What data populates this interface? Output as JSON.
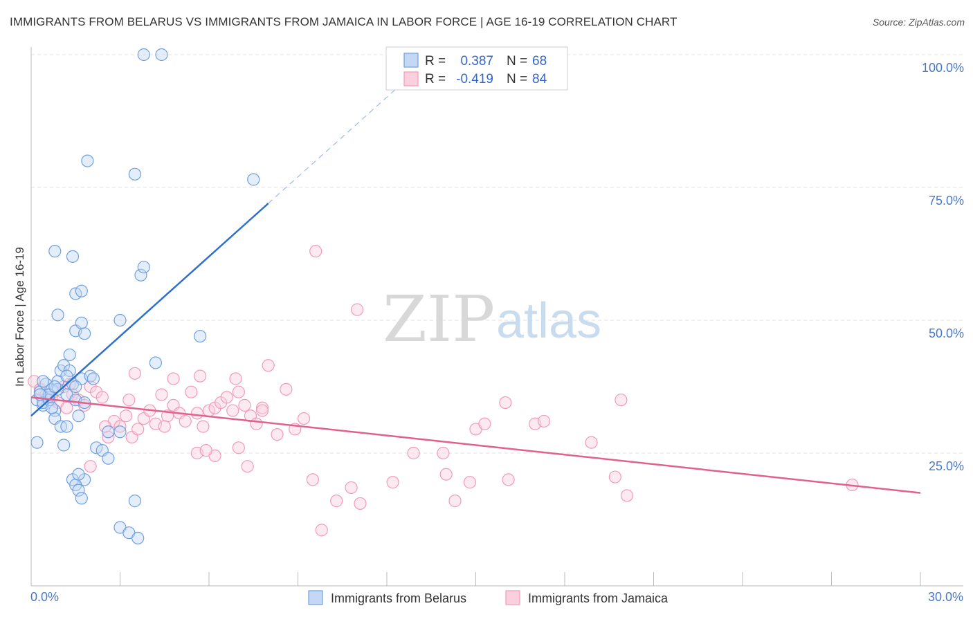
{
  "title": "IMMIGRANTS FROM BELARUS VS IMMIGRANTS FROM JAMAICA IN LABOR FORCE | AGE 16-19 CORRELATION CHART",
  "source": "Source: ZipAtlas.com",
  "watermark": {
    "zip": "ZIP",
    "atlas": "atlas"
  },
  "legend": {
    "r_label": "R =",
    "n_label": "N =",
    "rows": [
      {
        "r": "0.387",
        "n": "68"
      },
      {
        "r": "-0.419",
        "n": "84"
      }
    ]
  },
  "chart_data": {
    "type": "scatter",
    "title": "IMMIGRANTS FROM BELARUS VS IMMIGRANTS FROM JAMAICA IN LABOR FORCE | AGE 16-19 CORRELATION CHART",
    "ylabel": "In Labor Force | Age 16-19",
    "xlabel": "",
    "xlim": [
      0,
      30
    ],
    "ylim": [
      0,
      100
    ],
    "x_tick_labels": [
      "0.0%",
      "30.0%"
    ],
    "y_ticks": [
      25,
      50,
      75,
      100
    ],
    "y_tick_labels": [
      "25.0%",
      "50.0%",
      "75.0%",
      "100.0%"
    ],
    "grid": true,
    "legend_position": "bottom",
    "colors": {
      "belarus": "#6fa0e0",
      "belarus_line": "#2c6fce",
      "jamaica": "#f29ab8",
      "jamaica_line": "#e0608e"
    },
    "series": [
      {
        "name": "Immigrants from Belarus",
        "r": 0.387,
        "n": 68,
        "trend": {
          "x": [
            0,
            8
          ],
          "y": [
            32,
            72
          ]
        },
        "trend_extension": {
          "x": [
            8,
            13
          ],
          "y": [
            72,
            97
          ]
        },
        "points": [
          [
            0.2,
            35.0
          ],
          [
            0.3,
            36.5
          ],
          [
            0.4,
            34.0
          ],
          [
            0.5,
            38.0
          ],
          [
            0.6,
            35.5
          ],
          [
            0.7,
            37.0
          ],
          [
            0.8,
            33.0
          ],
          [
            0.9,
            38.5
          ],
          [
            1.0,
            40.5
          ],
          [
            1.1,
            41.5
          ],
          [
            1.2,
            36.0
          ],
          [
            1.3,
            43.5
          ],
          [
            1.4,
            38.0
          ],
          [
            1.5,
            35.0
          ],
          [
            1.6,
            32.0
          ],
          [
            1.7,
            39.0
          ],
          [
            1.8,
            34.5
          ],
          [
            2.0,
            39.5
          ],
          [
            2.2,
            26.0
          ],
          [
            2.4,
            25.5
          ],
          [
            2.6,
            24.0
          ],
          [
            0.4,
            34.5
          ],
          [
            0.6,
            35.0
          ],
          [
            0.8,
            31.5
          ],
          [
            1.0,
            30.0
          ],
          [
            1.2,
            30.0
          ],
          [
            1.5,
            37.5
          ],
          [
            0.2,
            27.0
          ],
          [
            1.1,
            26.5
          ],
          [
            1.8,
            20.0
          ],
          [
            1.4,
            20.0
          ],
          [
            1.5,
            19.0
          ],
          [
            1.6,
            18.0
          ],
          [
            1.7,
            16.5
          ],
          [
            1.6,
            21.0
          ],
          [
            2.6,
            29.0
          ],
          [
            3.0,
            29.0
          ],
          [
            3.0,
            11.0
          ],
          [
            3.3,
            10.0
          ],
          [
            3.6,
            9.0
          ],
          [
            3.5,
            16.0
          ],
          [
            0.8,
            63.0
          ],
          [
            1.4,
            62.0
          ],
          [
            1.5,
            55.0
          ],
          [
            1.7,
            55.5
          ],
          [
            0.9,
            51.0
          ],
          [
            1.5,
            48.0
          ],
          [
            1.8,
            47.5
          ],
          [
            1.7,
            49.5
          ],
          [
            3.0,
            50.0
          ],
          [
            3.5,
            77.5
          ],
          [
            1.9,
            80.0
          ],
          [
            3.7,
            58.5
          ],
          [
            3.8,
            60.0
          ],
          [
            5.7,
            47.0
          ],
          [
            4.2,
            42.0
          ],
          [
            7.5,
            76.5
          ],
          [
            3.8,
            100.0
          ],
          [
            4.4,
            100.0
          ],
          [
            2.1,
            39.0
          ],
          [
            1.3,
            40.5
          ],
          [
            0.9,
            37.0
          ],
          [
            0.4,
            38.5
          ],
          [
            0.6,
            36.0
          ],
          [
            0.8,
            37.5
          ],
          [
            1.2,
            39.5
          ],
          [
            0.7,
            33.5
          ],
          [
            0.3,
            36.0
          ]
        ]
      },
      {
        "name": "Immigrants from Jamaica",
        "r": -0.419,
        "n": 84,
        "trend": {
          "x": [
            0,
            30
          ],
          "y": [
            35.5,
            17.5
          ]
        },
        "points": [
          [
            0.1,
            38.5
          ],
          [
            0.3,
            37.0
          ],
          [
            0.5,
            36.0
          ],
          [
            0.7,
            35.5
          ],
          [
            0.9,
            34.5
          ],
          [
            1.1,
            37.5
          ],
          [
            1.3,
            38.0
          ],
          [
            1.4,
            36.0
          ],
          [
            1.6,
            35.0
          ],
          [
            1.8,
            34.0
          ],
          [
            2.0,
            37.5
          ],
          [
            2.2,
            36.5
          ],
          [
            2.4,
            35.5
          ],
          [
            2.8,
            31.0
          ],
          [
            3.0,
            30.0
          ],
          [
            3.2,
            32.0
          ],
          [
            3.4,
            28.0
          ],
          [
            3.6,
            29.5
          ],
          [
            3.8,
            31.5
          ],
          [
            4.0,
            33.0
          ],
          [
            4.2,
            30.5
          ],
          [
            4.4,
            36.0
          ],
          [
            4.6,
            32.0
          ],
          [
            4.8,
            34.0
          ],
          [
            5.0,
            32.5
          ],
          [
            5.2,
            31.0
          ],
          [
            5.4,
            36.5
          ],
          [
            5.6,
            32.5
          ],
          [
            5.8,
            30.0
          ],
          [
            6.0,
            33.0
          ],
          [
            6.2,
            33.5
          ],
          [
            6.4,
            34.5
          ],
          [
            6.6,
            35.5
          ],
          [
            6.8,
            33.0
          ],
          [
            7.0,
            36.5
          ],
          [
            7.2,
            34.0
          ],
          [
            7.4,
            32.0
          ],
          [
            7.6,
            30.5
          ],
          [
            7.8,
            33.5
          ],
          [
            8.0,
            41.5
          ],
          [
            8.3,
            28.5
          ],
          [
            8.6,
            37.0
          ],
          [
            8.9,
            29.5
          ],
          [
            9.2,
            31.5
          ],
          [
            3.5,
            40.0
          ],
          [
            4.8,
            39.0
          ],
          [
            5.7,
            39.5
          ],
          [
            6.9,
            39.0
          ],
          [
            2.0,
            22.5
          ],
          [
            2.6,
            28.0
          ],
          [
            5.6,
            25.0
          ],
          [
            6.2,
            24.5
          ],
          [
            7.0,
            26.0
          ],
          [
            7.3,
            22.5
          ],
          [
            9.5,
            20.0
          ],
          [
            10.3,
            16.0
          ],
          [
            9.6,
            63.0
          ],
          [
            11.0,
            52.0
          ],
          [
            10.8,
            18.5
          ],
          [
            11.1,
            15.5
          ],
          [
            9.8,
            10.5
          ],
          [
            12.2,
            19.5
          ],
          [
            12.9,
            25.0
          ],
          [
            13.9,
            25.0
          ],
          [
            14.0,
            21.0
          ],
          [
            14.3,
            16.0
          ],
          [
            14.8,
            19.5
          ],
          [
            15.0,
            29.5
          ],
          [
            15.3,
            30.5
          ],
          [
            16.0,
            34.5
          ],
          [
            16.1,
            20.0
          ],
          [
            17.0,
            30.5
          ],
          [
            17.3,
            31.0
          ],
          [
            18.9,
            27.0
          ],
          [
            19.7,
            20.5
          ],
          [
            19.9,
            35.0
          ],
          [
            20.1,
            17.0
          ],
          [
            27.7,
            19.0
          ],
          [
            1.2,
            33.5
          ],
          [
            2.5,
            30.0
          ],
          [
            3.3,
            35.0
          ],
          [
            4.5,
            30.0
          ],
          [
            5.9,
            25.5
          ],
          [
            7.8,
            33.0
          ]
        ]
      }
    ]
  }
}
